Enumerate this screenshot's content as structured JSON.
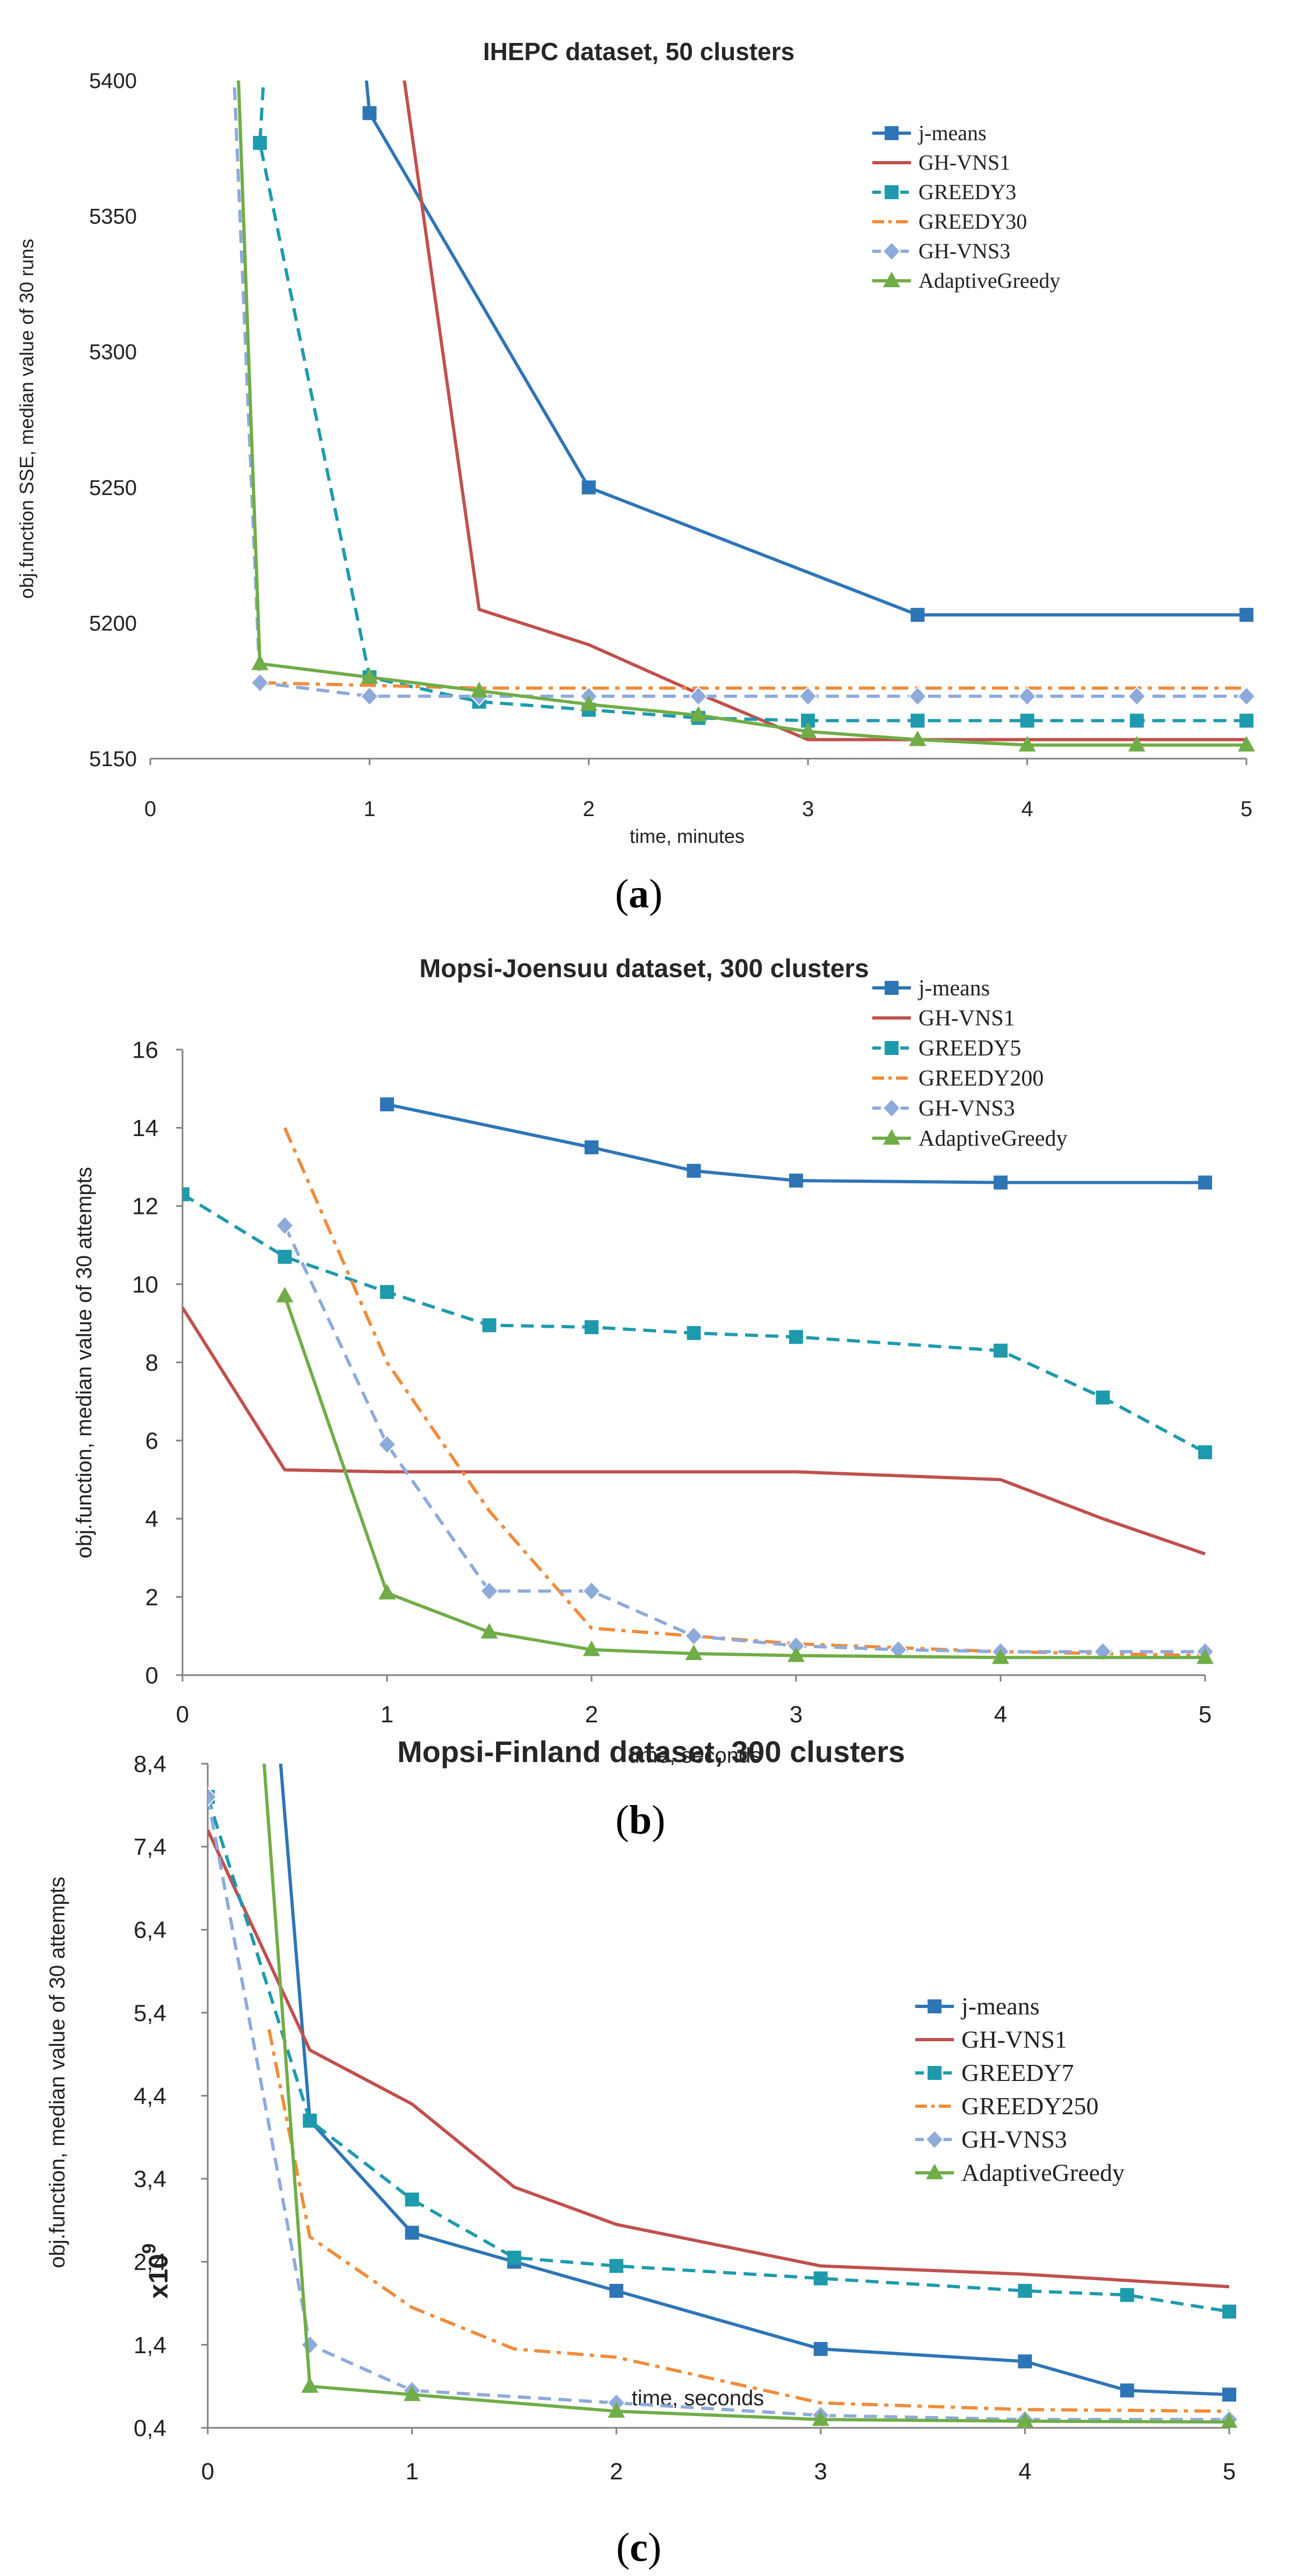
{
  "chart_data": [
    {
      "type": "line",
      "title": "IHEPC dataset, 50 clusters",
      "xlabel": "time, minutes",
      "ylabel": "obj.function SSE, median value of 30 runs",
      "xlim": [
        0,
        5
      ],
      "ylim": [
        5150,
        5400
      ],
      "xticks": [
        0,
        1,
        2,
        3,
        4,
        5
      ],
      "yticks": [
        5150,
        5200,
        5250,
        5300,
        5350,
        5400
      ],
      "xtick_labels": [
        "0",
        "1",
        "2",
        "3",
        "4",
        "5"
      ],
      "ytick_labels": [
        "5150",
        "5200",
        "5250",
        "5300",
        "5350",
        "5400"
      ],
      "caption_letter": "a",
      "legend_position": "top-right",
      "series": [
        {
          "name": "j-means",
          "color": "#2e75b6",
          "style": "solid",
          "marker": "square",
          "x": [
            1,
            2,
            3.5,
            5
          ],
          "y": [
            5388,
            5250,
            5203,
            5203
          ],
          "lead_in": [
            [
              0.98,
              5405
            ]
          ]
        },
        {
          "name": "GH-VNS1",
          "color": "#c0504d",
          "style": "solid",
          "marker": "none",
          "x": [
            1.5,
            2,
            2.5,
            3,
            4,
            5
          ],
          "y": [
            5205,
            5192,
            5174,
            5157,
            5157,
            5157
          ],
          "lead_in": [
            [
              1.15,
              5405
            ]
          ]
        },
        {
          "name": "GREEDY3",
          "color": "#1e9aad",
          "style": "dash",
          "marker": "square",
          "x": [
            0.5,
            1,
            1.5,
            2,
            2.5,
            3,
            3.5,
            4,
            4.5,
            5
          ],
          "y": [
            5377,
            5180,
            5171,
            5168,
            5165,
            5164,
            5164,
            5164,
            5164,
            5164
          ],
          "lead_in": [
            [
              0.52,
              5405
            ]
          ]
        },
        {
          "name": "GREEDY30",
          "color": "#f08c3a",
          "style": "dashdot",
          "marker": "none",
          "x": [
            0.5,
            1,
            1.5,
            2,
            2.5,
            3,
            3.5,
            4,
            4.5,
            5
          ],
          "y": [
            5178,
            5177,
            5176,
            5176,
            5176,
            5176,
            5176,
            5176,
            5176,
            5176
          ],
          "lead_in": []
        },
        {
          "name": "GH-VNS3",
          "color": "#8eaadb",
          "style": "dash",
          "marker": "diamond",
          "x": [
            0.5,
            1,
            1.5,
            2,
            2.5,
            3,
            3.5,
            4,
            4.5,
            5
          ],
          "y": [
            5178,
            5173,
            5173,
            5173,
            5173,
            5173,
            5173,
            5173,
            5173,
            5173
          ],
          "lead_in": [
            [
              0.38,
              5405
            ]
          ]
        },
        {
          "name": "AdaptiveGreedy",
          "color": "#70ad47",
          "style": "solid",
          "marker": "triangle",
          "x": [
            0.5,
            1,
            1.5,
            2,
            2.5,
            3,
            3.5,
            4,
            4.5,
            5
          ],
          "y": [
            5185,
            5180,
            5175,
            5170,
            5166,
            5160,
            5157,
            5155,
            5155,
            5155
          ],
          "lead_in": [
            [
              0.4,
              5405
            ]
          ]
        }
      ]
    },
    {
      "type": "line",
      "title": "Mopsi-Joensuu dataset,  300 clusters",
      "xlabel": "time, seconds",
      "ylabel": "obj.function, median value of 30 attempts",
      "xlim": [
        0,
        5
      ],
      "ylim": [
        0,
        16
      ],
      "xticks": [
        0,
        1,
        2,
        3,
        4,
        5
      ],
      "yticks": [
        0,
        2,
        4,
        6,
        8,
        10,
        12,
        14,
        16
      ],
      "xtick_labels": [
        "0",
        "1",
        "2",
        "3",
        "4",
        "5"
      ],
      "ytick_labels": [
        "0",
        "2",
        "4",
        "6",
        "8",
        "10",
        "12",
        "14",
        "16"
      ],
      "caption_letter": "b",
      "legend_position": "top-right",
      "series": [
        {
          "name": "j-means",
          "color": "#2e75b6",
          "style": "solid",
          "marker": "square",
          "x": [
            1,
            2,
            2.5,
            3,
            4,
            5
          ],
          "y": [
            14.6,
            13.5,
            12.9,
            12.65,
            12.6,
            12.6
          ],
          "lead_in": []
        },
        {
          "name": "GH-VNS1",
          "color": "#c0504d",
          "style": "solid",
          "marker": "none",
          "x": [
            0,
            0.5,
            1,
            2,
            3,
            4,
            4.5,
            5
          ],
          "y": [
            9.4,
            5.25,
            5.2,
            5.2,
            5.2,
            5.0,
            4.0,
            3.1
          ],
          "lead_in": []
        },
        {
          "name": "GREEDY5",
          "color": "#1e9aad",
          "style": "dash",
          "marker": "square",
          "x": [
            0,
            0.5,
            1,
            1.5,
            2,
            2.5,
            3,
            4,
            4.5,
            5
          ],
          "y": [
            12.3,
            10.7,
            9.8,
            8.95,
            8.9,
            8.75,
            8.65,
            8.3,
            7.1,
            5.7
          ],
          "lead_in": []
        },
        {
          "name": "GREEDY200",
          "color": "#f08c3a",
          "style": "dashdot",
          "marker": "none",
          "x": [
            0.5,
            1,
            1.5,
            2,
            2.5,
            3,
            4,
            5
          ],
          "y": [
            14.0,
            8.0,
            4.2,
            1.2,
            1.0,
            0.8,
            0.6,
            0.5
          ],
          "lead_in": []
        },
        {
          "name": "GH-VNS3",
          "color": "#8eaadb",
          "style": "dash",
          "marker": "diamond",
          "x": [
            0.5,
            1,
            1.5,
            2,
            2.5,
            3,
            3.5,
            4,
            4.5,
            5
          ],
          "y": [
            11.5,
            5.9,
            2.15,
            2.15,
            1.0,
            0.75,
            0.65,
            0.6,
            0.6,
            0.6
          ],
          "lead_in": []
        },
        {
          "name": "AdaptiveGreedy",
          "color": "#70ad47",
          "style": "solid",
          "marker": "triangle",
          "x": [
            0.5,
            1,
            1.5,
            2,
            2.5,
            3,
            4,
            5
          ],
          "y": [
            9.7,
            2.1,
            1.1,
            0.65,
            0.55,
            0.5,
            0.45,
            0.45
          ],
          "lead_in": []
        }
      ]
    },
    {
      "type": "line",
      "title": "Mopsi-Finland  dataset,  300 clusters",
      "xlabel": "time, seconds",
      "ylabel": "obj.function, median value of 30 attempts",
      "multiplier_label": "x10",
      "multiplier_exponent": "9",
      "xlim": [
        0,
        5
      ],
      "ylim": [
        0.4,
        8.4
      ],
      "xticks": [
        0,
        1,
        2,
        3,
        4,
        5
      ],
      "yticks": [
        0.4,
        1.4,
        2.4,
        3.4,
        4.4,
        5.4,
        6.4,
        7.4,
        8.4
      ],
      "xtick_labels": [
        "0",
        "1",
        "2",
        "3",
        "4",
        "5"
      ],
      "ytick_labels": [
        "0,4",
        "1,4",
        "2,4",
        "3,4",
        "4,4",
        "5,4",
        "6,4",
        "7,4",
        "8,4"
      ],
      "caption_letter": "c",
      "legend_position": "right",
      "series": [
        {
          "name": "j-means",
          "color": "#2e75b6",
          "style": "solid",
          "marker": "square",
          "x": [
            0.5,
            1,
            1.5,
            2,
            3,
            4,
            4.5,
            5
          ],
          "y": [
            4.1,
            2.75,
            2.4,
            2.05,
            1.35,
            1.2,
            0.85,
            0.8
          ],
          "lead_in": [
            [
              0.35,
              8.6
            ]
          ]
        },
        {
          "name": "GH-VNS1",
          "color": "#c0504d",
          "style": "solid",
          "marker": "none",
          "x": [
            0,
            0.5,
            1,
            1.5,
            2,
            3,
            4,
            5
          ],
          "y": [
            7.6,
            4.95,
            4.3,
            3.3,
            2.85,
            2.35,
            2.25,
            2.1
          ],
          "lead_in": []
        },
        {
          "name": "GREEDY7",
          "color": "#1e9aad",
          "style": "dash",
          "marker": "square",
          "x": [
            0,
            0.5,
            1,
            1.5,
            2,
            3,
            4,
            4.5,
            5
          ],
          "y": [
            8.0,
            4.1,
            3.15,
            2.45,
            2.35,
            2.2,
            2.05,
            2.0,
            1.8
          ],
          "lead_in": []
        },
        {
          "name": "GREEDY250",
          "color": "#f08c3a",
          "style": "dashdot",
          "marker": "none",
          "x": [
            0.5,
            1,
            1.5,
            2,
            3,
            4,
            5
          ],
          "y": [
            2.7,
            1.85,
            1.35,
            1.25,
            0.7,
            0.62,
            0.6
          ],
          "lead_in": [
            [
              0.3,
              5.2
            ]
          ]
        },
        {
          "name": "GH-VNS3",
          "color": "#8eaadb",
          "style": "dash",
          "marker": "diamond",
          "x": [
            0,
            0.5,
            1,
            2,
            3,
            4,
            5
          ],
          "y": [
            8.0,
            1.4,
            0.85,
            0.7,
            0.55,
            0.5,
            0.5
          ],
          "lead_in": []
        },
        {
          "name": "AdaptiveGreedy",
          "color": "#70ad47",
          "style": "solid",
          "marker": "triangle",
          "x": [
            0.5,
            1,
            2,
            3,
            4,
            5
          ],
          "y": [
            0.9,
            0.8,
            0.6,
            0.5,
            0.48,
            0.47
          ],
          "lead_in": [
            [
              0.27,
              8.6
            ]
          ]
        }
      ]
    }
  ]
}
